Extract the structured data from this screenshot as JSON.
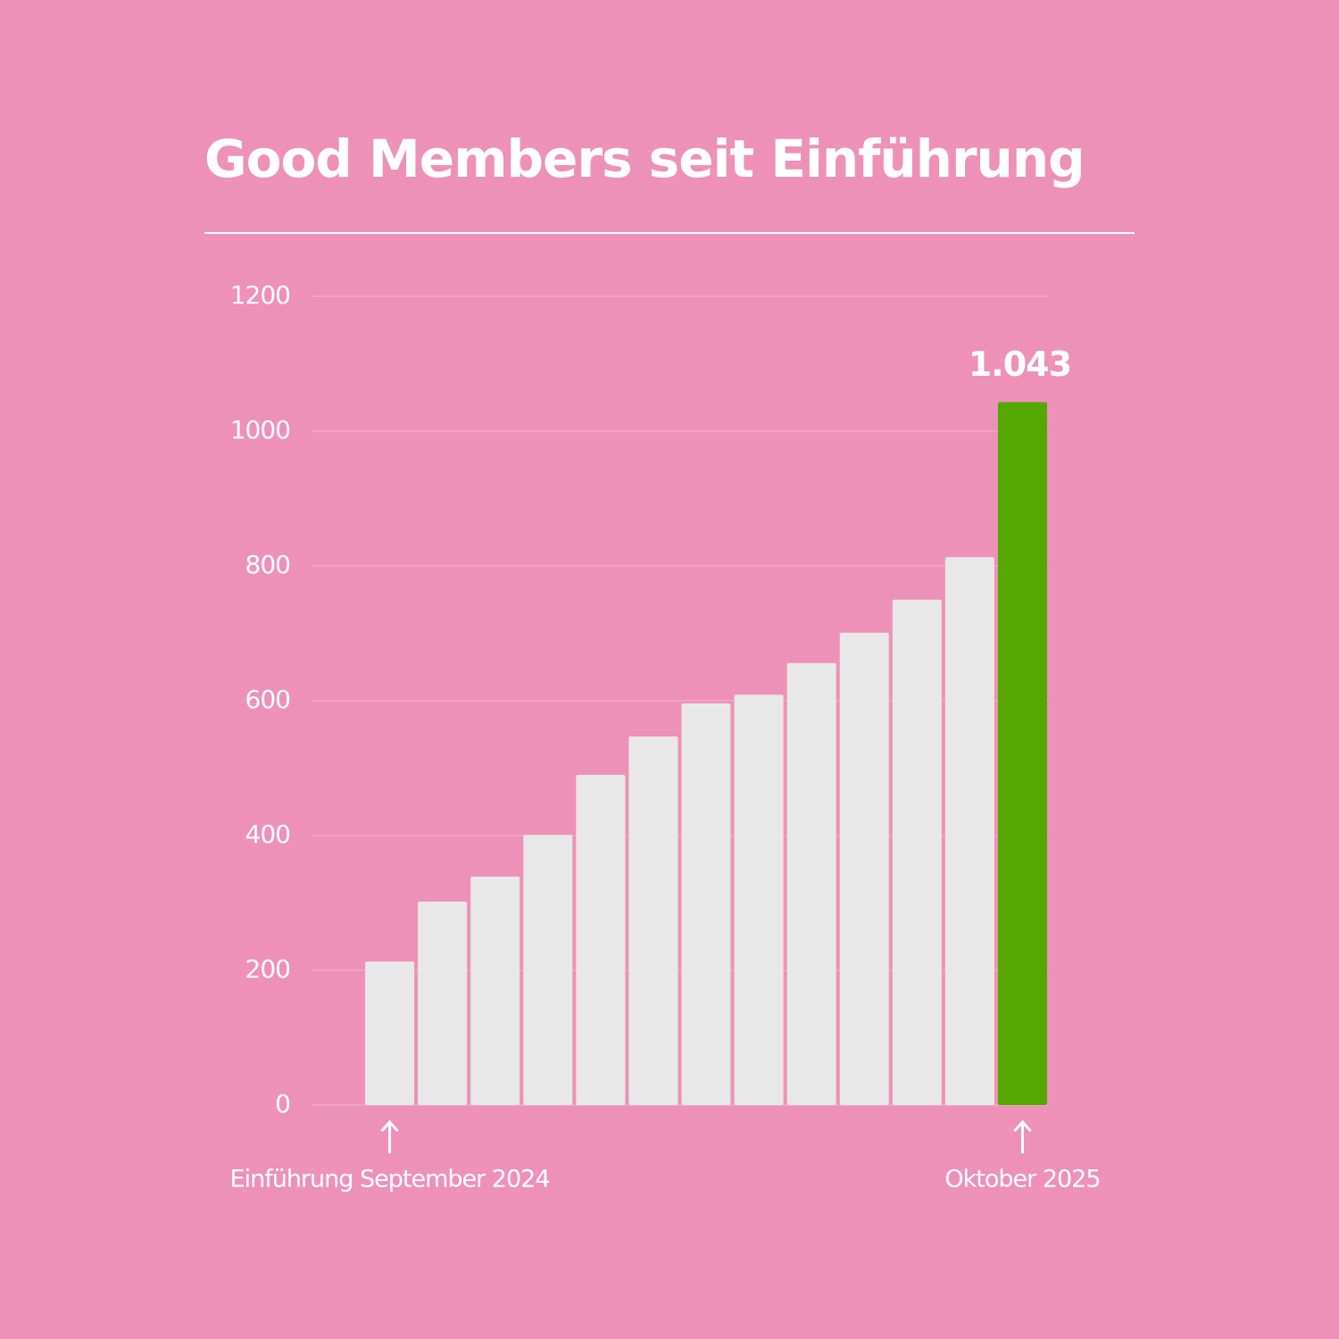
{
  "chart_data": {
    "type": "bar",
    "title": "Good Members seit Einführung",
    "categories": [
      "Einführung September 2024",
      null,
      null,
      null,
      null,
      null,
      null,
      null,
      null,
      null,
      null,
      null,
      "Oktober 2025"
    ],
    "values": [
      213,
      302,
      339,
      401,
      490,
      547,
      596,
      609,
      656,
      701,
      750,
      813,
      1043
    ],
    "value_labels": [
      null,
      null,
      null,
      null,
      null,
      null,
      null,
      null,
      null,
      null,
      null,
      null,
      "1.043"
    ],
    "colors": [
      "#e8e8e8",
      "#e8e8e8",
      "#e8e8e8",
      "#e8e8e8",
      "#e8e8e8",
      "#e8e8e8",
      "#e8e8e8",
      "#e8e8e8",
      "#e8e8e8",
      "#e8e8e8",
      "#e8e8e8",
      "#e8e8e8",
      "#55a800"
    ],
    "ylim": [
      0,
      1200
    ],
    "yticks": [
      0,
      200,
      400,
      600,
      800,
      1000,
      1200
    ],
    "grid": true
  }
}
